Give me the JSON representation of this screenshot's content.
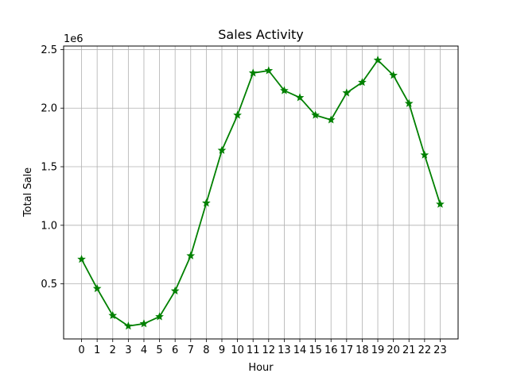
{
  "chart_data": {
    "type": "line",
    "title": "Sales Activity",
    "xlabel": "Hour",
    "ylabel": "Total Sale",
    "offset_label": "1e6",
    "x": [
      0,
      1,
      2,
      3,
      4,
      5,
      6,
      7,
      8,
      9,
      10,
      11,
      12,
      13,
      14,
      15,
      16,
      17,
      18,
      19,
      20,
      21,
      22,
      23
    ],
    "x_tick_labels": [
      "0",
      "1",
      "2",
      "3",
      "4",
      "5",
      "6",
      "7",
      "8",
      "9",
      "10",
      "11",
      "12",
      "13",
      "14",
      "15",
      "16",
      "17",
      "18",
      "19",
      "20",
      "21",
      "22",
      "23"
    ],
    "y_ticks": [
      0.5,
      1.0,
      1.5,
      2.0,
      2.5
    ],
    "y_tick_labels": [
      "0.5",
      "1.0",
      "1.5",
      "2.0",
      "2.5"
    ],
    "ylim": [
      0.03,
      2.53
    ],
    "xlim": [
      -1.15,
      24.15
    ],
    "series": [
      {
        "values": [
          0.71,
          0.46,
          0.23,
          0.14,
          0.16,
          0.22,
          0.44,
          0.74,
          1.19,
          1.64,
          1.94,
          2.3,
          2.32,
          2.15,
          2.09,
          1.94,
          1.9,
          2.13,
          2.22,
          2.41,
          2.28,
          2.04,
          1.6,
          1.18
        ],
        "color": "#008000",
        "marker": "star"
      }
    ],
    "grid": true,
    "legend": "none"
  }
}
